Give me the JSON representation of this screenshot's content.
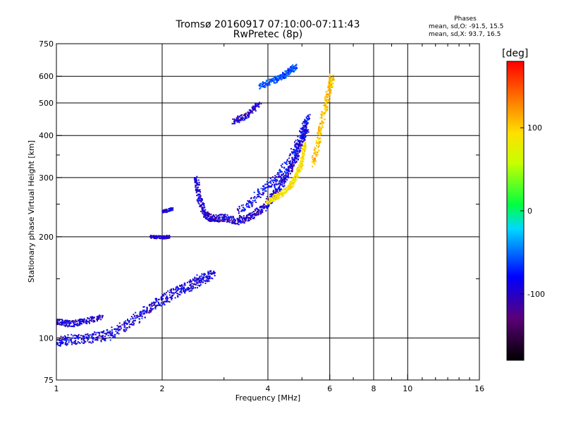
{
  "header": {
    "title": "Tromsø 20160917 07:10:00-07:11:43",
    "subtitle": "RwPretec (8p)"
  },
  "stats": {
    "heading": "Phases",
    "o_mode": "mean, sd,O: -91.5, 15.5",
    "x_mode": "mean, sd,X:  93.7, 16.5"
  },
  "colorbar": {
    "unit": "[deg]",
    "ticks": [
      "100",
      "0",
      "-100"
    ],
    "tick_values": [
      100,
      0,
      -100
    ],
    "range": [
      -180,
      180
    ]
  },
  "chart_data": {
    "type": "scatter",
    "title": "Tromsø 20160917 07:10:00-07:11:43",
    "subtitle": "RwPretec (8p)",
    "xlabel": "Frequency [MHz]",
    "ylabel": "Stationary phase Virtual Height [km]",
    "x_scale": "log",
    "y_scale": "log",
    "xlim": [
      1,
      16
    ],
    "ylim": [
      75,
      750
    ],
    "x_ticks": [
      1,
      2,
      4,
      6,
      8,
      10,
      16
    ],
    "x_tick_labels": [
      "1",
      "2",
      "4",
      "6",
      "8",
      "10",
      "16"
    ],
    "y_ticks": [
      75,
      100,
      200,
      300,
      400,
      500,
      600,
      750
    ],
    "y_tick_labels": [
      "75",
      "100",
      "200",
      "300",
      "400",
      "500",
      "600",
      "750"
    ],
    "grid": true,
    "color_by": "phase [deg]",
    "traces": [
      {
        "f": [
          1.0,
          1.1,
          1.25,
          1.4,
          1.6,
          1.8,
          2.0,
          2.2,
          2.4,
          2.6,
          2.8
        ],
        "h": [
          97,
          99,
          100,
          102,
          110,
          120,
          130,
          137,
          143,
          150,
          155
        ],
        "phase": -105,
        "spread": 0.07
      },
      {
        "f": [
          1.0,
          1.1,
          1.2,
          1.35
        ],
        "h": [
          112,
          110,
          112,
          115
        ],
        "phase": -110,
        "spread": 0.04
      },
      {
        "f": [
          1.85,
          2.0,
          2.1
        ],
        "h": [
          200,
          199,
          200
        ],
        "phase": -110,
        "spread": 0.02
      },
      {
        "f": [
          2.0,
          2.15
        ],
        "h": [
          237,
          242
        ],
        "phase": -105,
        "spread": 0.02
      },
      {
        "f": [
          2.5,
          2.55,
          2.65,
          2.8,
          3.0,
          3.3,
          3.6,
          3.9,
          4.2,
          4.5,
          4.8,
          5.0,
          5.2
        ],
        "h": [
          300,
          260,
          232,
          226,
          228,
          222,
          230,
          245,
          270,
          300,
          340,
          390,
          430
        ],
        "phase": -110,
        "spread": 0.05
      },
      {
        "f": [
          3.3,
          3.8,
          4.3,
          4.7,
          5.0,
          5.2
        ],
        "h": [
          235,
          270,
          300,
          350,
          400,
          460
        ],
        "phase": -100,
        "spread": 0.06
      },
      {
        "f": [
          4.0,
          4.3,
          4.6,
          4.8,
          5.0,
          5.1
        ],
        "h": [
          255,
          265,
          280,
          300,
          330,
          380
        ],
        "phase": 85,
        "spread": 0.04
      },
      {
        "f": [
          5.4,
          5.6,
          5.8,
          6.0,
          6.1
        ],
        "h": [
          330,
          400,
          480,
          550,
          600
        ],
        "phase": 100,
        "spread": 0.05
      },
      {
        "f": [
          3.2,
          3.5,
          3.8
        ],
        "h": [
          440,
          460,
          500
        ],
        "phase": -110,
        "spread": 0.04
      },
      {
        "f": [
          3.8,
          4.1,
          4.4,
          4.6,
          4.8
        ],
        "h": [
          560,
          580,
          600,
          620,
          640
        ],
        "phase": -80,
        "spread": 0.04
      }
    ]
  }
}
